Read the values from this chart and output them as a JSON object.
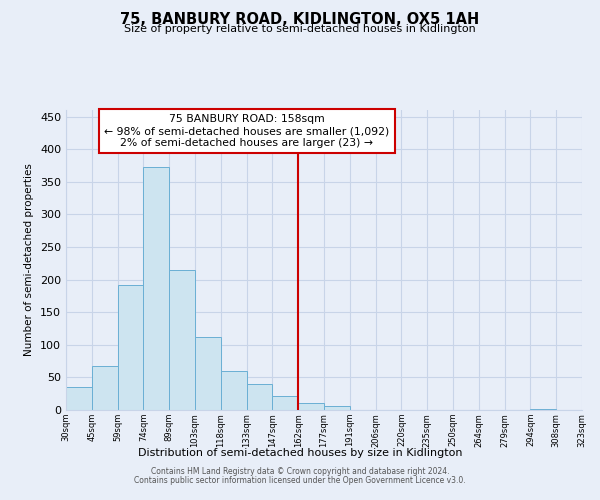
{
  "title": "75, BANBURY ROAD, KIDLINGTON, OX5 1AH",
  "subtitle": "Size of property relative to semi-detached houses in Kidlington",
  "xlabel": "Distribution of semi-detached houses by size in Kidlington",
  "ylabel": "Number of semi-detached properties",
  "bar_values": [
    35,
    68,
    191,
    373,
    215,
    112,
    60,
    40,
    22,
    10,
    6,
    0,
    0,
    0,
    0,
    0,
    0,
    0,
    2,
    0
  ],
  "tick_labels": [
    "30sqm",
    "45sqm",
    "59sqm",
    "74sqm",
    "89sqm",
    "103sqm",
    "118sqm",
    "133sqm",
    "147sqm",
    "162sqm",
    "177sqm",
    "191sqm",
    "206sqm",
    "220sqm",
    "235sqm",
    "250sqm",
    "264sqm",
    "279sqm",
    "294sqm",
    "308sqm",
    "323sqm"
  ],
  "bar_color": "#cde4f0",
  "bar_edge_color": "#6aafd4",
  "vline_color": "#cc0000",
  "ylim": [
    0,
    460
  ],
  "yticks": [
    0,
    50,
    100,
    150,
    200,
    250,
    300,
    350,
    400,
    450
  ],
  "annotation_title": "75 BANBURY ROAD: 158sqm",
  "annotation_line1": "← 98% of semi-detached houses are smaller (1,092)",
  "annotation_line2": "2% of semi-detached houses are larger (23) →",
  "annotation_box_color": "#ffffff",
  "annotation_box_edgecolor": "#cc0000",
  "footer1": "Contains HM Land Registry data © Crown copyright and database right 2024.",
  "footer2": "Contains public sector information licensed under the Open Government Licence v3.0.",
  "bg_color": "#e8eef8",
  "plot_bg_color": "#e8eef8",
  "grid_color": "#c8d4e8",
  "vline_x_index": 9
}
